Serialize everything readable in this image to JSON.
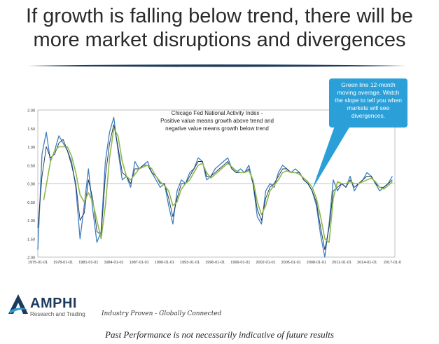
{
  "headline": {
    "line1": "If growth is falling below trend, there will be",
    "line2": "more market disruptions and divergences"
  },
  "callout": {
    "text": "Green line 12-month moving average. Watch the slope to tell you when markets will see divergences."
  },
  "logo": {
    "name": "AMPHI",
    "sub": "Research and Trading"
  },
  "tagline": "Industry Proven - Globally Connected",
  "disclaimer": "Past Performance is not necessarily indicative of future results",
  "colors": {
    "raw": "#3d7fc2",
    "dark": "#1a2f52",
    "ma": "#8fb84a",
    "callout": "#2b9fd8",
    "divider": "#1c3a5c"
  },
  "chart_data": {
    "type": "line",
    "title_lines": [
      "Chicago Fed National Activity Index -",
      "Positive value means growth above trend and",
      "negative value means growth below trend"
    ],
    "ylim": [
      -2.0,
      2.0
    ],
    "yticks": [
      "-2.00",
      "-1.50",
      "-1.00",
      "-0.50",
      "0.00",
      "0.50",
      "1.00",
      "1.50",
      "2.00"
    ],
    "xlim": [
      1975.0,
      2017.3
    ],
    "xticks": [
      {
        "label": "1975-01-01",
        "x": 1975
      },
      {
        "label": "1978-01-01",
        "x": 1978
      },
      {
        "label": "1981-01-01",
        "x": 1981
      },
      {
        "label": "1984-01-01",
        "x": 1984
      },
      {
        "label": "1987-01-01",
        "x": 1987
      },
      {
        "label": "1990-01-01",
        "x": 1990
      },
      {
        "label": "1993-01-01",
        "x": 1993
      },
      {
        "label": "1996-01-01",
        "x": 1996
      },
      {
        "label": "1999-01-01",
        "x": 1999
      },
      {
        "label": "2002-01-01",
        "x": 2002
      },
      {
        "label": "2005-01-01",
        "x": 2005
      },
      {
        "label": "2008-01-01",
        "x": 2008
      },
      {
        "label": "2011-01-01",
        "x": 2011
      },
      {
        "label": "2014-01-01",
        "x": 2014
      },
      {
        "label": "2017-01-0",
        "x": 2017
      }
    ],
    "series": [
      {
        "key": "raw",
        "x": [
          1975.0,
          1975.5,
          1976.0,
          1976.5,
          1977.0,
          1977.5,
          1978.0,
          1978.5,
          1979.0,
          1979.5,
          1980.0,
          1980.5,
          1981.0,
          1981.5,
          1982.0,
          1982.5,
          1983.0,
          1983.5,
          1984.0,
          1984.5,
          1985.0,
          1985.5,
          1986.0,
          1986.5,
          1987.0,
          1987.5,
          1988.0,
          1988.5,
          1989.0,
          1989.5,
          1990.0,
          1990.5,
          1991.0,
          1991.5,
          1992.0,
          1992.5,
          1993.0,
          1993.5,
          1994.0,
          1994.5,
          1995.0,
          1995.5,
          1996.0,
          1996.5,
          1997.0,
          1997.5,
          1998.0,
          1998.5,
          1999.0,
          1999.5,
          2000.0,
          2000.5,
          2001.0,
          2001.5,
          2002.0,
          2002.5,
          2003.0,
          2003.5,
          2004.0,
          2004.5,
          2005.0,
          2005.5,
          2006.0,
          2006.5,
          2007.0,
          2007.5,
          2008.0,
          2008.5,
          2009.0,
          2009.5,
          2010.0,
          2010.5,
          2011.0,
          2011.5,
          2012.0,
          2012.5,
          2013.0,
          2013.5,
          2014.0,
          2014.5,
          2015.0,
          2015.5,
          2016.0,
          2016.5,
          2017.0
        ],
        "values": [
          -1.8,
          0.8,
          1.4,
          0.6,
          0.9,
          1.3,
          1.1,
          0.9,
          0.6,
          -0.1,
          -1.5,
          -0.6,
          0.4,
          -0.7,
          -1.6,
          -1.3,
          0.6,
          1.4,
          1.8,
          0.9,
          0.1,
          0.2,
          -0.1,
          0.6,
          0.4,
          0.5,
          0.6,
          0.3,
          0.1,
          -0.1,
          0.0,
          -0.6,
          -1.1,
          -0.2,
          0.1,
          0.0,
          0.3,
          0.4,
          0.7,
          0.6,
          0.1,
          0.2,
          0.4,
          0.5,
          0.6,
          0.7,
          0.4,
          0.3,
          0.4,
          0.3,
          0.5,
          0.0,
          -0.9,
          -1.1,
          -0.2,
          0.0,
          -0.1,
          0.3,
          0.5,
          0.4,
          0.3,
          0.4,
          0.3,
          0.1,
          0.0,
          -0.2,
          -0.6,
          -1.4,
          -2.0,
          -1.1,
          0.1,
          -0.2,
          0.0,
          -0.1,
          0.2,
          -0.2,
          0.0,
          0.1,
          0.3,
          0.2,
          0.0,
          -0.2,
          -0.1,
          0.0,
          0.2
        ]
      },
      {
        "key": "dark",
        "x": [
          1975.0,
          1975.5,
          1976.0,
          1976.5,
          1977.0,
          1977.5,
          1978.0,
          1978.5,
          1979.0,
          1979.5,
          1980.0,
          1980.5,
          1981.0,
          1981.5,
          1982.0,
          1982.5,
          1983.0,
          1983.5,
          1984.0,
          1984.5,
          1985.0,
          1985.5,
          1986.0,
          1986.5,
          1987.0,
          1987.5,
          1988.0,
          1988.5,
          1989.0,
          1989.5,
          1990.0,
          1990.5,
          1991.0,
          1991.5,
          1992.0,
          1992.5,
          1993.0,
          1993.5,
          1994.0,
          1994.5,
          1995.0,
          1995.5,
          1996.0,
          1996.5,
          1997.0,
          1997.5,
          1998.0,
          1998.5,
          1999.0,
          1999.5,
          2000.0,
          2000.5,
          2001.0,
          2001.5,
          2002.0,
          2002.5,
          2003.0,
          2003.5,
          2004.0,
          2004.5,
          2005.0,
          2005.5,
          2006.0,
          2006.5,
          2007.0,
          2007.5,
          2008.0,
          2008.5,
          2009.0,
          2009.5,
          2010.0,
          2010.5,
          2011.0,
          2011.5,
          2012.0,
          2012.5,
          2013.0,
          2013.5,
          2014.0,
          2014.5,
          2015.0,
          2015.5,
          2016.0,
          2016.5,
          2017.0
        ],
        "values": [
          -1.2,
          0.2,
          1.0,
          0.7,
          0.8,
          1.1,
          1.2,
          0.9,
          0.5,
          0.0,
          -1.0,
          -0.8,
          0.1,
          -0.4,
          -1.3,
          -1.4,
          0.2,
          1.1,
          1.6,
          1.0,
          0.3,
          0.2,
          0.0,
          0.4,
          0.4,
          0.5,
          0.5,
          0.3,
          0.2,
          0.0,
          0.0,
          -0.4,
          -0.9,
          -0.4,
          0.0,
          0.0,
          0.2,
          0.4,
          0.6,
          0.6,
          0.2,
          0.2,
          0.3,
          0.4,
          0.5,
          0.6,
          0.4,
          0.3,
          0.3,
          0.3,
          0.4,
          0.0,
          -0.7,
          -1.0,
          -0.4,
          -0.1,
          0.0,
          0.2,
          0.4,
          0.4,
          0.3,
          0.3,
          0.3,
          0.1,
          0.0,
          -0.2,
          -0.5,
          -1.2,
          -1.8,
          -1.2,
          -0.2,
          -0.1,
          0.0,
          -0.1,
          0.1,
          -0.1,
          0.0,
          0.1,
          0.2,
          0.2,
          0.0,
          -0.1,
          -0.1,
          0.0,
          0.1
        ]
      },
      {
        "key": "ma",
        "x": [
          1975.7,
          1976.5,
          1977.0,
          1977.5,
          1978.0,
          1978.5,
          1979.0,
          1979.5,
          1980.0,
          1980.5,
          1981.0,
          1981.5,
          1982.0,
          1982.5,
          1983.0,
          1983.5,
          1984.0,
          1984.5,
          1985.0,
          1985.5,
          1986.0,
          1986.5,
          1987.0,
          1987.5,
          1988.0,
          1988.5,
          1989.0,
          1989.5,
          1990.0,
          1990.5,
          1991.0,
          1991.5,
          1992.0,
          1992.5,
          1993.0,
          1993.5,
          1994.0,
          1994.5,
          1995.0,
          1995.5,
          1996.0,
          1996.5,
          1997.0,
          1997.5,
          1998.0,
          1998.5,
          1999.0,
          1999.5,
          2000.0,
          2000.5,
          2001.0,
          2001.5,
          2002.0,
          2002.5,
          2003.0,
          2003.5,
          2004.0,
          2004.5,
          2005.0,
          2005.5,
          2006.0,
          2006.5,
          2007.0,
          2007.5,
          2008.0,
          2008.5,
          2009.0,
          2009.5,
          2010.0,
          2010.5,
          2011.0,
          2011.5,
          2012.0,
          2012.5,
          2013.0,
          2013.5,
          2014.0,
          2014.5,
          2015.0,
          2015.5,
          2016.0,
          2016.5,
          2017.0
        ],
        "values": [
          -0.45,
          0.6,
          0.9,
          1.0,
          1.0,
          1.0,
          0.75,
          0.3,
          -0.3,
          -0.5,
          -0.25,
          -0.5,
          -1.0,
          -1.5,
          -0.6,
          0.7,
          1.5,
          1.3,
          0.6,
          0.2,
          0.1,
          0.25,
          0.4,
          0.45,
          0.5,
          0.4,
          0.2,
          0.05,
          -0.05,
          -0.2,
          -0.6,
          -0.5,
          -0.15,
          0.0,
          0.1,
          0.3,
          0.5,
          0.55,
          0.3,
          0.15,
          0.25,
          0.35,
          0.45,
          0.55,
          0.45,
          0.35,
          0.3,
          0.3,
          0.35,
          0.1,
          -0.5,
          -0.85,
          -0.6,
          -0.2,
          -0.05,
          0.1,
          0.3,
          0.35,
          0.3,
          0.3,
          0.25,
          0.15,
          0.05,
          -0.1,
          -0.4,
          -0.9,
          -1.5,
          -1.6,
          -0.4,
          0.05,
          0.0,
          0.0,
          0.05,
          0.0,
          0.0,
          0.05,
          0.1,
          0.15,
          0.05,
          -0.1,
          -0.15,
          -0.05,
          0.05
        ]
      }
    ]
  }
}
